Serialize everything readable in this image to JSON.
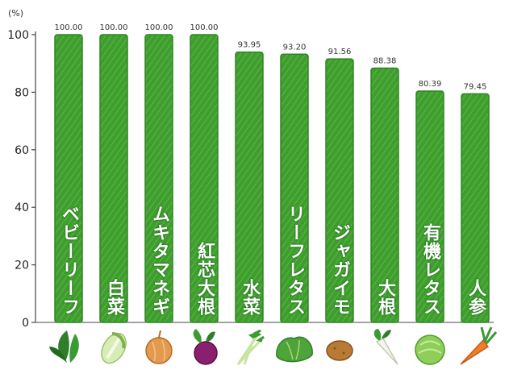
{
  "chart_data": {
    "type": "bar",
    "title": "",
    "unit_label": "(%)",
    "ylim": [
      0,
      100
    ],
    "yticks": [
      0,
      20,
      40,
      60,
      80,
      100
    ],
    "grid": false,
    "bar_color": "#3f9e2f",
    "bar_edge_color": "#2f8522",
    "categories": [
      "ベビーリーフ",
      "白菜",
      "ムキタマネギ",
      "紅芯大根",
      "水菜",
      "リーフレタス",
      "ジャガイモ",
      "大根",
      "有機レタス",
      "人参"
    ],
    "values": [
      100.0,
      100.0,
      100.0,
      100.0,
      93.95,
      93.2,
      91.56,
      88.38,
      80.39,
      79.45
    ],
    "value_labels": [
      "100.00",
      "100.00",
      "100.00",
      "100.00",
      "93.95",
      "93.20",
      "91.56",
      "88.38",
      "80.39",
      "79.45"
    ],
    "icons": [
      "baby-leaf-icon",
      "chinese-cabbage-icon",
      "onion-icon",
      "red-radish-icon",
      "mizuna-icon",
      "leaf-lettuce-icon",
      "potato-icon",
      "daikon-icon",
      "lettuce-icon",
      "carrot-icon"
    ]
  }
}
